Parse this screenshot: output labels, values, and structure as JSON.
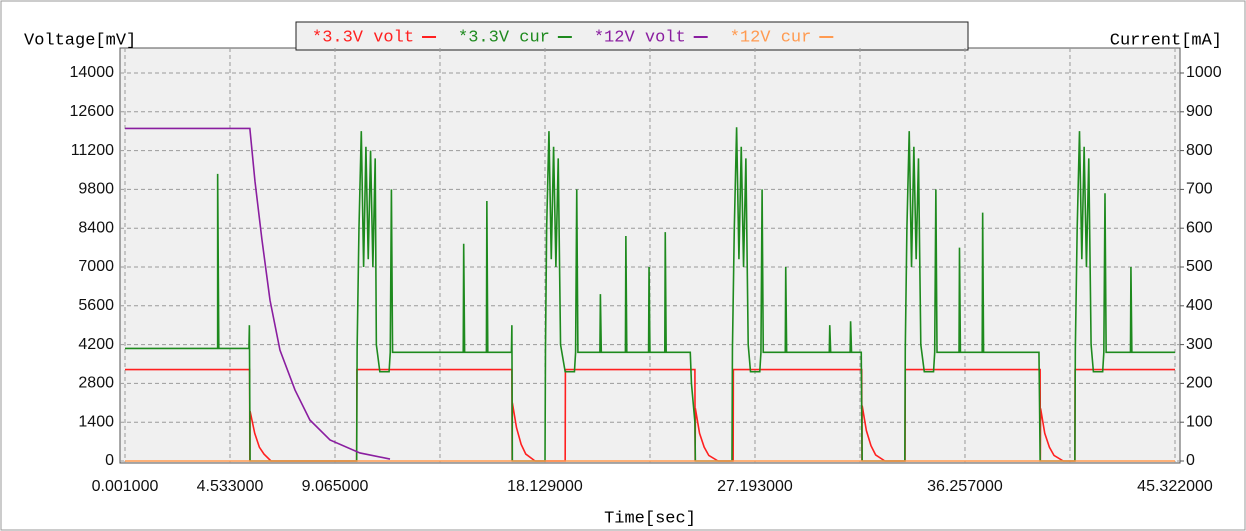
{
  "chart_data": {
    "type": "line",
    "ylabel": "Voltage[mV]",
    "y2label": "Current[mA]",
    "xlabel": "Time[sec]",
    "xlim": [
      0.001,
      45.322
    ],
    "ylim": [
      0,
      14000
    ],
    "y2lim": [
      0,
      1000
    ],
    "xticks": [
      {
        "value": 0.001,
        "label": "0.001000"
      },
      {
        "value": 4.533,
        "label": "4.533000"
      },
      {
        "value": 9.065,
        "label": "9.065000"
      },
      {
        "value": 13.597,
        "label": null
      },
      {
        "value": 18.129,
        "label": "18.129000"
      },
      {
        "value": 22.661,
        "label": null
      },
      {
        "value": 27.193,
        "label": "27.193000"
      },
      {
        "value": 31.725,
        "label": null
      },
      {
        "value": 36.257,
        "label": "36.257000"
      },
      {
        "value": 40.789,
        "label": null
      },
      {
        "value": 45.322,
        "label": "45.322000"
      }
    ],
    "yticks": [
      0,
      1400,
      2800,
      4200,
      5600,
      7000,
      8400,
      9800,
      11200,
      12600,
      14000
    ],
    "y2ticks": [
      0,
      100,
      200,
      300,
      400,
      500,
      600,
      700,
      800,
      900,
      1000
    ],
    "grid": true,
    "legend": "top",
    "series": [
      {
        "name": "*3.3V volt",
        "color": "#ff2020",
        "axis": "y",
        "x": [
          0.001,
          5.38,
          5.39,
          5.4,
          5.6,
          5.8,
          6.0,
          6.3,
          10.0,
          10.01,
          16.7,
          16.71,
          16.72,
          16.9,
          17.1,
          17.3,
          17.7,
          19.0,
          19.01,
          24.6,
          24.61,
          24.62,
          24.8,
          25.0,
          25.2,
          25.6,
          26.25,
          26.26,
          31.8,
          31.81,
          31.82,
          32.0,
          32.2,
          32.4,
          32.8,
          33.67,
          33.68,
          39.5,
          39.51,
          39.52,
          39.7,
          39.9,
          40.1,
          40.5,
          41.0,
          41.01,
          45.322
        ],
        "values": [
          3300,
          3300,
          0,
          1800,
          1000,
          500,
          250,
          0,
          0,
          3300,
          3300,
          0,
          2100,
          1200,
          600,
          250,
          0,
          0,
          3300,
          3300,
          0,
          1900,
          1000,
          500,
          200,
          0,
          0,
          3300,
          3300,
          0,
          2000,
          1100,
          550,
          220,
          0,
          0,
          3300,
          3300,
          0,
          1900,
          1000,
          500,
          200,
          0,
          0,
          3300,
          3300
        ]
      },
      {
        "name": "*3.3V cur",
        "color": "#1e8a1e",
        "axis": "y2",
        "x": [
          0.001,
          4.0,
          4.0,
          4.05,
          5.35,
          5.37,
          5.4,
          10.0,
          10.02,
          10.1,
          10.2,
          10.3,
          10.4,
          10.5,
          10.6,
          10.7,
          10.8,
          10.85,
          11.0,
          11.4,
          11.45,
          11.5,
          11.55,
          14.6,
          14.62,
          14.66,
          15.6,
          15.62,
          15.66,
          16.68,
          16.7,
          16.72,
          18.13,
          18.15,
          18.2,
          18.3,
          18.4,
          18.5,
          18.6,
          18.7,
          18.8,
          19.0,
          19.4,
          19.45,
          19.5,
          19.55,
          20.5,
          20.52,
          20.56,
          21.6,
          21.62,
          21.66,
          22.6,
          22.62,
          22.66,
          23.3,
          23.32,
          23.36,
          24.4,
          24.45,
          24.6,
          24.62,
          26.2,
          26.22,
          26.3,
          26.4,
          26.5,
          26.6,
          26.7,
          26.8,
          26.9,
          27.0,
          27.4,
          27.45,
          27.5,
          27.55,
          28.5,
          28.52,
          28.56,
          30.4,
          30.42,
          30.46,
          31.3,
          31.32,
          31.36,
          31.78,
          31.8,
          31.82,
          33.66,
          33.68,
          33.75,
          33.85,
          33.95,
          34.05,
          34.15,
          34.25,
          34.35,
          34.5,
          34.9,
          34.95,
          35.0,
          35.05,
          36.0,
          36.02,
          36.06,
          37.0,
          37.02,
          37.06,
          39.45,
          39.48,
          39.5,
          41.0,
          41.02,
          41.1,
          41.2,
          41.3,
          41.4,
          41.5,
          41.6,
          41.7,
          41.8,
          42.2,
          42.25,
          42.3,
          42.35,
          43.4,
          43.42,
          43.46,
          45.322
        ],
        "values": [
          290,
          290,
          740,
          290,
          290,
          350,
          0,
          0,
          290,
          600,
          850,
          500,
          810,
          520,
          800,
          500,
          780,
          300,
          230,
          230,
          280,
          700,
          280,
          280,
          560,
          280,
          280,
          670,
          280,
          280,
          350,
          0,
          0,
          290,
          600,
          850,
          520,
          810,
          500,
          780,
          300,
          230,
          230,
          280,
          700,
          280,
          280,
          430,
          280,
          280,
          580,
          280,
          280,
          500,
          280,
          280,
          590,
          280,
          280,
          200,
          100,
          0,
          0,
          290,
          600,
          860,
          520,
          810,
          500,
          780,
          300,
          230,
          230,
          280,
          700,
          280,
          280,
          500,
          280,
          280,
          350,
          280,
          280,
          360,
          280,
          280,
          120,
          0,
          0,
          290,
          600,
          850,
          500,
          810,
          520,
          780,
          300,
          230,
          230,
          280,
          700,
          280,
          280,
          550,
          280,
          280,
          640,
          280,
          280,
          120,
          0,
          0,
          290,
          600,
          850,
          520,
          810,
          500,
          780,
          300,
          230,
          230,
          280,
          690,
          280,
          280,
          500,
          280,
          280
        ]
      },
      {
        "name": "*12V volt",
        "color": "#8a1ea0",
        "axis": "y",
        "x": [
          0.001,
          5.39,
          5.61,
          5.91,
          6.26,
          6.69,
          7.34,
          7.98,
          8.85,
          10.14,
          11.44
        ],
        "values": [
          12000,
          12000,
          10100,
          8000,
          5800,
          4000,
          2560,
          1480,
          760,
          290,
          70
        ]
      },
      {
        "name": "*12V cur",
        "color": "#ff9a50",
        "axis": "y2",
        "x": [
          0.001,
          45.322
        ],
        "values": [
          0,
          0
        ]
      }
    ]
  }
}
